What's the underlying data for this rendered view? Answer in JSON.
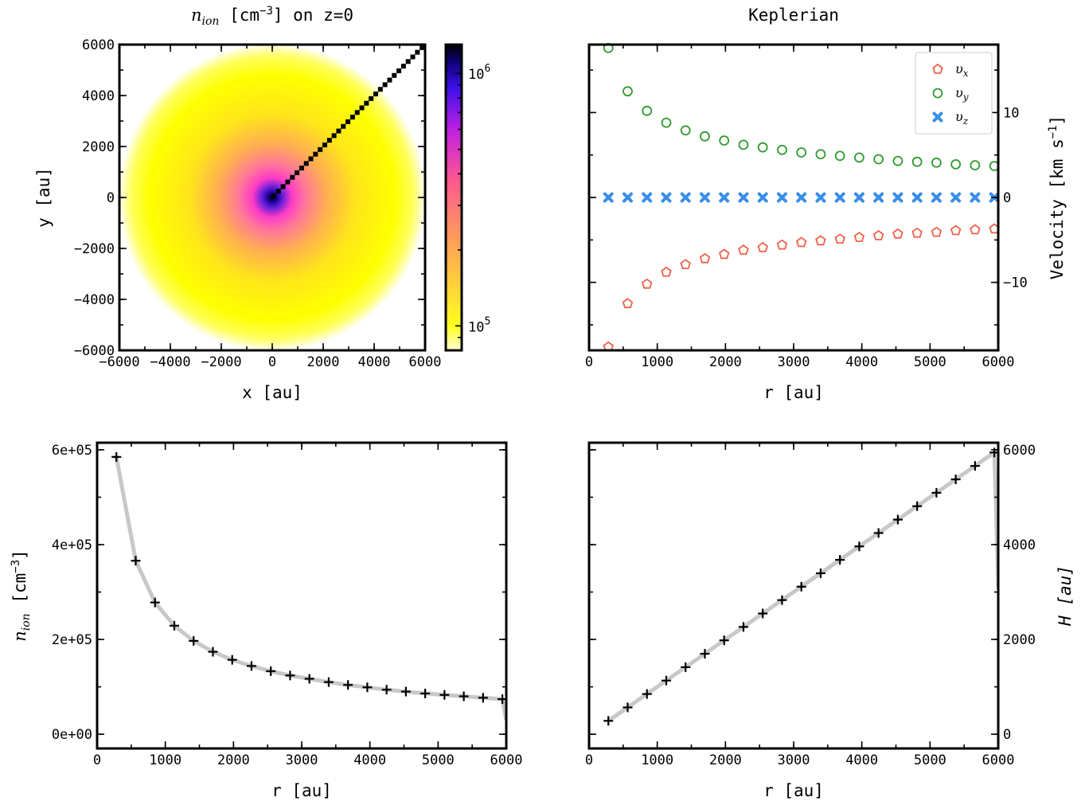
{
  "colors": {
    "vx": "#f0604a",
    "vy": "#2e9a2e",
    "vz": "#3a8ee6",
    "profile_line": "#c8c8c8",
    "marker": "#000000"
  },
  "chart_data": [
    {
      "type": "heatmap",
      "title_main": "n",
      "title_sub": "ion",
      "title_rest": " [cm",
      "title_sup": "−3",
      "title_tail": "] on z=0",
      "xlabel": "x [au]",
      "ylabel": "y [au]",
      "xlim": [
        -6000,
        6000
      ],
      "ylim": [
        -6000,
        6000
      ],
      "xticks": [
        "−6000",
        "−4000",
        "−2000",
        "0",
        "2000",
        "4000",
        "6000"
      ],
      "yticks": [
        "−6000",
        "−4000",
        "−2000",
        "0",
        "2000",
        "4000",
        "6000"
      ],
      "disk_radius": 6000,
      "colorscale": "log",
      "colorbar_range": [
        80000,
        1300000
      ],
      "colorbar_ticks": [
        {
          "value": 1000000,
          "base": "10",
          "exp": "6"
        },
        {
          "value": 100000,
          "base": "10",
          "exp": "5"
        }
      ],
      "profile_line_angle_deg": 45
    },
    {
      "type": "scatter",
      "title": "Keplerian",
      "xlabel": "r [au]",
      "ylabel": "Velocity [km s",
      "ylabel_sup": "−1",
      "ylabel_tail": "]",
      "xlim": [
        0,
        6000
      ],
      "ylim": [
        -18,
        18
      ],
      "xticks": [
        "0",
        "1000",
        "2000",
        "3000",
        "4000",
        "5000",
        "6000"
      ],
      "yticks": [
        {
          "value": 10,
          "label": "10"
        },
        {
          "value": 0,
          "label": "0"
        },
        {
          "value": -10,
          "label": "−10"
        }
      ],
      "legend_position": "top-right",
      "x": [
        283,
        566,
        849,
        1132,
        1415,
        1698,
        1981,
        2264,
        2547,
        2830,
        3113,
        3396,
        3679,
        3962,
        4245,
        4528,
        4811,
        5094,
        5377,
        5660,
        5943
      ],
      "series": [
        {
          "name": "υ",
          "sub": "x",
          "marker": "pentagon",
          "color_key": "vx",
          "values": [
            -17.6,
            -12.5,
            -10.2,
            -8.8,
            -7.9,
            -7.2,
            -6.7,
            -6.2,
            -5.9,
            -5.6,
            -5.3,
            -5.1,
            -4.9,
            -4.7,
            -4.5,
            -4.3,
            -4.2,
            -4.1,
            -3.9,
            -3.8,
            -3.7
          ]
        },
        {
          "name": "υ",
          "sub": "y",
          "marker": "circle",
          "color_key": "vy",
          "values": [
            17.6,
            12.5,
            10.2,
            8.8,
            7.9,
            7.2,
            6.7,
            6.2,
            5.9,
            5.6,
            5.3,
            5.1,
            4.9,
            4.7,
            4.5,
            4.3,
            4.2,
            4.1,
            3.9,
            3.8,
            3.7
          ]
        },
        {
          "name": "υ",
          "sub": "z",
          "marker": "x",
          "color_key": "vz",
          "values": [
            0,
            0,
            0,
            0,
            0,
            0,
            0,
            0,
            0,
            0,
            0,
            0,
            0,
            0,
            0,
            0,
            0,
            0,
            0,
            0,
            0
          ]
        }
      ]
    },
    {
      "type": "line",
      "xlabel": "r [au]",
      "ylabel_main": "n",
      "ylabel_sub": "ion",
      "ylabel_rest": "  [cm",
      "ylabel_sup": "−3",
      "ylabel_tail": "]",
      "xlim": [
        0,
        6000
      ],
      "ylim": [
        -30000,
        615000
      ],
      "xticks": [
        "0",
        "1000",
        "2000",
        "3000",
        "4000",
        "5000",
        "6000"
      ],
      "yticks": [
        {
          "value": 0,
          "label": "0e+00"
        },
        {
          "value": 200000,
          "label": "2e+05"
        },
        {
          "value": 400000,
          "label": "4e+05"
        },
        {
          "value": 600000,
          "label": "6e+05"
        }
      ],
      "x": [
        283,
        566,
        849,
        1132,
        1415,
        1698,
        1981,
        2264,
        2547,
        2830,
        3113,
        3396,
        3679,
        3962,
        4245,
        4528,
        4811,
        5094,
        5377,
        5660,
        5943
      ],
      "y": [
        585000,
        366000,
        278000,
        229000,
        197000,
        174000,
        157000,
        144000,
        133000,
        124000,
        117000,
        110000,
        104000,
        99000,
        94000,
        90000,
        86000,
        83000,
        80000,
        77000,
        74000
      ],
      "line_x": [
        240,
        283,
        566,
        849,
        1132,
        1415,
        1698,
        1981,
        2264,
        2547,
        2830,
        3113,
        3396,
        3679,
        3962,
        4245,
        4528,
        4811,
        5094,
        5377,
        5660,
        5943,
        6000
      ],
      "line_y": [
        585000,
        585000,
        366000,
        278000,
        229000,
        197000,
        174000,
        157000,
        144000,
        133000,
        124000,
        117000,
        110000,
        104000,
        99000,
        94000,
        90000,
        86000,
        83000,
        80000,
        77000,
        74000,
        30000
      ]
    },
    {
      "type": "line",
      "xlabel": "r [au]",
      "ylabel": "H [au]",
      "xlim": [
        0,
        6000
      ],
      "ylim": [
        -300,
        6150
      ],
      "xticks": [
        "0",
        "1000",
        "2000",
        "3000",
        "4000",
        "5000",
        "6000"
      ],
      "yticks": [
        {
          "value": 0,
          "label": "0"
        },
        {
          "value": 2000,
          "label": "2000"
        },
        {
          "value": 4000,
          "label": "4000"
        },
        {
          "value": 6000,
          "label": "6000"
        }
      ],
      "x": [
        283,
        566,
        849,
        1132,
        1415,
        1698,
        1981,
        2264,
        2547,
        2830,
        3113,
        3396,
        3679,
        3962,
        4245,
        4528,
        4811,
        5094,
        5377,
        5660,
        5943
      ],
      "y": [
        283,
        566,
        849,
        1132,
        1415,
        1698,
        1981,
        2264,
        2547,
        2830,
        3113,
        3396,
        3679,
        3962,
        4245,
        4528,
        4811,
        5094,
        5377,
        5660,
        5943
      ],
      "line_x": [
        283,
        5943,
        6000
      ],
      "line_y": [
        283,
        5943,
        3100
      ]
    }
  ]
}
